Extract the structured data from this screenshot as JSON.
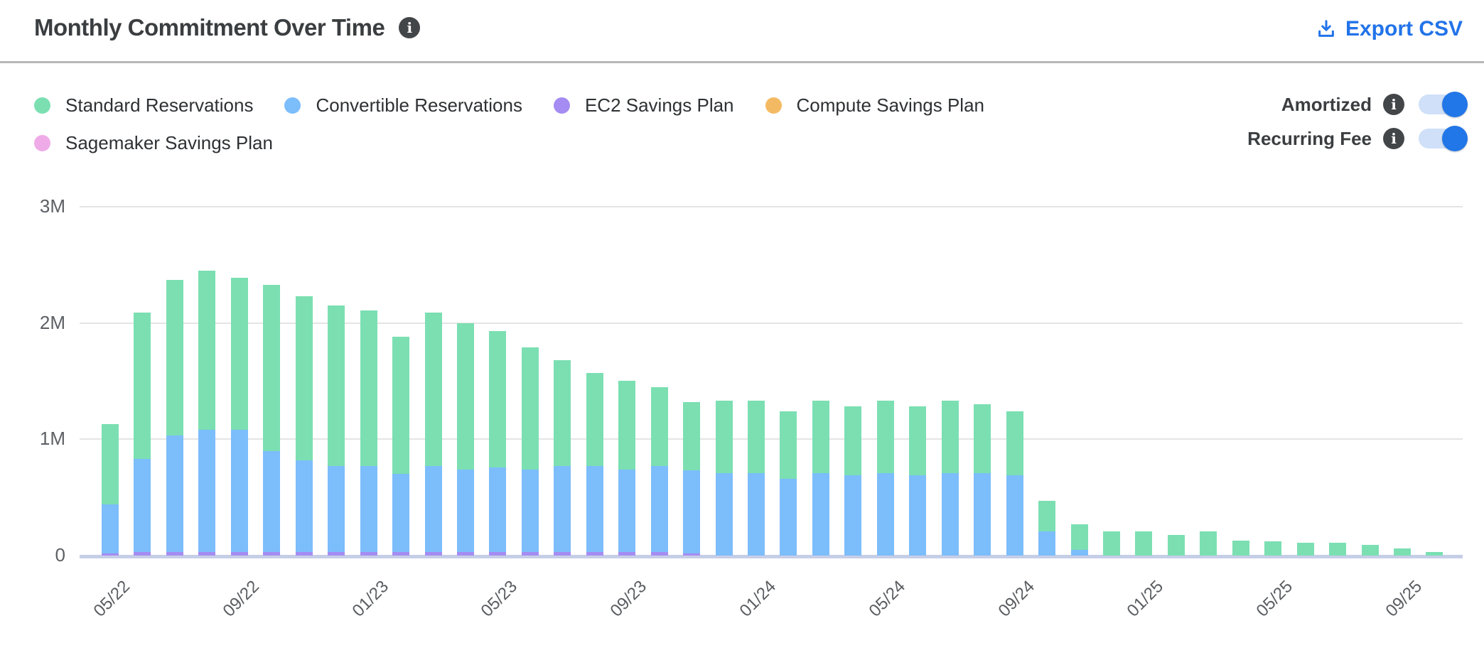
{
  "header": {
    "title": "Monthly Commitment Over Time",
    "export_label": "Export CSV"
  },
  "icons": {
    "info_glyph": "i"
  },
  "toggles": [
    {
      "label": "Amortized",
      "state": "on"
    },
    {
      "label": "Recurring Fee",
      "state": "on"
    }
  ],
  "accent_colors": {
    "link_blue": "#2273e9",
    "toggle_track": "#cfe0f8",
    "toggle_knob": "#2176e8",
    "info_badge": "#434649"
  },
  "chart_data": {
    "type": "bar",
    "stacked": true,
    "title": "Monthly Commitment Over Time",
    "grid": true,
    "legend_position": "top-left",
    "ylim": [
      0,
      3
    ],
    "y_tick_labels": [
      "0",
      "1M",
      "2M",
      "3M"
    ],
    "x_tick_indices": [
      0,
      4,
      8,
      12,
      16,
      20,
      24,
      28,
      32,
      36,
      40
    ],
    "x_tick_labels": [
      "05/22",
      "09/22",
      "01/23",
      "05/23",
      "09/23",
      "01/24",
      "05/24",
      "09/24",
      "01/25",
      "05/25",
      "09/25"
    ],
    "value_unit": "M",
    "categories": [
      "05/22",
      "06/22",
      "07/22",
      "08/22",
      "09/22",
      "10/22",
      "11/22",
      "12/22",
      "01/23",
      "02/23",
      "03/23",
      "04/23",
      "05/23",
      "06/23",
      "07/23",
      "08/23",
      "09/23",
      "10/23",
      "11/23",
      "12/23",
      "01/24",
      "02/24",
      "03/24",
      "04/24",
      "05/24",
      "06/24",
      "07/24",
      "08/24",
      "09/24",
      "10/24",
      "11/24",
      "12/24",
      "01/25",
      "02/25",
      "03/25",
      "04/25",
      "05/25",
      "06/25",
      "07/25",
      "08/25",
      "09/25",
      "10/25"
    ],
    "series": [
      {
        "name": "Standard Reservations",
        "color": "#7bdfb2",
        "values": [
          0.69,
          1.26,
          1.34,
          1.37,
          1.31,
          1.43,
          1.41,
          1.38,
          1.34,
          1.18,
          1.32,
          1.26,
          1.17,
          1.05,
          0.91,
          0.8,
          0.76,
          0.68,
          0.59,
          0.62,
          0.62,
          0.58,
          0.62,
          0.59,
          0.62,
          0.59,
          0.62,
          0.59,
          0.55,
          0.26,
          0.22,
          0.21,
          0.21,
          0.18,
          0.21,
          0.13,
          0.12,
          0.11,
          0.11,
          0.09,
          0.06,
          0.03
        ]
      },
      {
        "name": "Convertible Reservations",
        "color": "#7cbdfb",
        "values": [
          0.42,
          0.8,
          1.0,
          1.05,
          1.05,
          0.87,
          0.79,
          0.74,
          0.74,
          0.67,
          0.74,
          0.71,
          0.73,
          0.71,
          0.74,
          0.74,
          0.71,
          0.74,
          0.71,
          0.71,
          0.71,
          0.66,
          0.71,
          0.69,
          0.71,
          0.69,
          0.71,
          0.71,
          0.69,
          0.21,
          0.05,
          0,
          0,
          0,
          0,
          0,
          0,
          0,
          0,
          0,
          0,
          0
        ]
      },
      {
        "name": "EC2 Savings Plan",
        "color": "#a58cf2",
        "values": [
          0.02,
          0.03,
          0.03,
          0.03,
          0.03,
          0.03,
          0.03,
          0.03,
          0.03,
          0.03,
          0.03,
          0.03,
          0.03,
          0.03,
          0.03,
          0.03,
          0.03,
          0.03,
          0.02,
          0,
          0,
          0,
          0,
          0,
          0,
          0,
          0,
          0,
          0,
          0,
          0,
          0,
          0,
          0,
          0,
          0,
          0,
          0,
          0,
          0,
          0,
          0
        ]
      },
      {
        "name": "Compute Savings Plan",
        "color": "#f4ba63",
        "values": [
          0,
          0,
          0,
          0,
          0,
          0,
          0,
          0,
          0,
          0,
          0,
          0,
          0,
          0,
          0,
          0,
          0,
          0,
          0,
          0,
          0,
          0,
          0,
          0,
          0,
          0,
          0,
          0,
          0,
          0,
          0,
          0,
          0,
          0,
          0,
          0,
          0,
          0,
          0,
          0,
          0,
          0
        ]
      },
      {
        "name": "Sagemaker Savings Plan",
        "color": "#efabe8",
        "values": [
          0,
          0,
          0,
          0,
          0,
          0,
          0,
          0,
          0,
          0,
          0,
          0,
          0,
          0,
          0,
          0,
          0,
          0,
          0,
          0,
          0,
          0,
          0,
          0,
          0,
          0,
          0,
          0,
          0,
          0,
          0,
          0,
          0,
          0,
          0,
          0,
          0,
          0,
          0,
          0,
          0,
          0
        ]
      }
    ]
  }
}
